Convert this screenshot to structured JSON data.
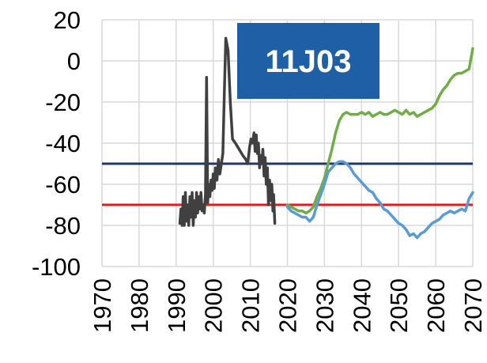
{
  "chart_data": {
    "type": "line",
    "title": "",
    "xlabel": "",
    "ylabel": "",
    "xlim": [
      1970,
      2070
    ],
    "ylim": [
      -100,
      20
    ],
    "x_ticks": [
      "1970",
      "1980",
      "1990",
      "2000",
      "2010",
      "2020",
      "2030",
      "2040",
      "2050",
      "2060",
      "2070"
    ],
    "y_ticks": [
      "20",
      "0",
      "-20",
      "-40",
      "-60",
      "-80",
      "-100"
    ],
    "grid": true,
    "legend": "none",
    "annotation": {
      "text": "11J03",
      "background": "#1f5fa6",
      "color": "#ffffff"
    },
    "reference_lines": [
      {
        "y": -50,
        "color": "#1f3864"
      },
      {
        "y": -70,
        "color": "#e8191c"
      }
    ],
    "series": [
      {
        "color": "#404040",
        "x": [
          1991.0,
          1991.3,
          1991.6,
          1991.9,
          1992.2,
          1992.5,
          1992.8,
          1993.1,
          1993.4,
          1993.7,
          1994.0,
          1994.3,
          1994.6,
          1994.9,
          1995.2,
          1995.5,
          1995.8,
          1996.1,
          1996.4,
          1996.7,
          1997.0,
          1997.3,
          1997.6,
          1997.9,
          1998.2,
          1998.5,
          1998.8,
          1999.1,
          1999.4,
          1999.7,
          2000.0,
          2000.3,
          2000.6,
          2001.0,
          2001.4,
          2001.8,
          2002.2,
          2002.6,
          2003.0,
          2003.4,
          2004.0,
          2004.6,
          2005.2,
          2006.0,
          2007.0,
          2008.0,
          2008.8,
          2009.3,
          2009.8,
          2010.2,
          2010.6,
          2011.0,
          2011.3,
          2011.6,
          2011.9,
          2012.2,
          2012.5,
          2012.8,
          2013.1,
          2013.4,
          2013.7,
          2014.0,
          2014.3,
          2014.6,
          2014.9,
          2015.2,
          2015.5,
          2015.8,
          2016.1,
          2016.3,
          2016.6
        ],
        "y": [
          -79,
          -72,
          -80,
          -66,
          -80,
          -64,
          -78,
          -70,
          -80,
          -66,
          -76,
          -64,
          -80,
          -68,
          -76,
          -64,
          -74,
          -66,
          -72,
          -64,
          -73,
          -70,
          -74,
          -65,
          -8,
          -69,
          -60,
          -66,
          -58,
          -63,
          -55,
          -62,
          -52,
          -58,
          -48,
          -55,
          -50,
          -45,
          -15,
          11,
          5,
          -20,
          -38,
          -40,
          -43,
          -46,
          -48,
          -50,
          -42,
          -38,
          -40,
          -35,
          -44,
          -36,
          -45,
          -40,
          -52,
          -46,
          -50,
          -43,
          -56,
          -47,
          -60,
          -52,
          -70,
          -58,
          -68,
          -60,
          -73,
          -65,
          -79
        ]
      },
      {
        "color": "#70ad47",
        "x": [
          2020.0,
          2021.0,
          2022.0,
          2023.0,
          2024.0,
          2025.0,
          2026.0,
          2027.0,
          2028.0,
          2029.0,
          2030.0,
          2031.0,
          2032.0,
          2033.0,
          2034.0,
          2035.0,
          2036.0,
          2037.0,
          2038.0,
          2039.0,
          2040.0,
          2041.0,
          2042.0,
          2043.0,
          2044.0,
          2045.0,
          2046.0,
          2047.0,
          2048.0,
          2049.0,
          2050.0,
          2051.0,
          2052.0,
          2053.0,
          2054.0,
          2055.0,
          2056.0,
          2057.0,
          2058.0,
          2059.0,
          2060.0,
          2061.0,
          2062.0,
          2063.0,
          2064.0,
          2065.0,
          2066.0,
          2067.0,
          2068.0,
          2069.0,
          2070.0
        ],
        "y": [
          -70,
          -71,
          -72,
          -73,
          -73,
          -74,
          -73,
          -71,
          -66,
          -62,
          -57,
          -50,
          -43,
          -35,
          -29,
          -26,
          -25,
          -26,
          -26,
          -26,
          -25,
          -26,
          -25,
          -27,
          -26,
          -25,
          -26,
          -26,
          -25,
          -24,
          -25,
          -26,
          -24,
          -26,
          -25,
          -27,
          -26,
          -25,
          -24,
          -23,
          -21,
          -17,
          -14,
          -12,
          -9,
          -7,
          -6,
          -6,
          -5,
          -4,
          6
        ]
      },
      {
        "color": "#5b9bd5",
        "x": [
          2020.0,
          2021.0,
          2022.0,
          2023.0,
          2024.0,
          2025.0,
          2026.0,
          2027.0,
          2028.0,
          2029.0,
          2030.0,
          2031.0,
          2032.0,
          2033.0,
          2034.0,
          2035.0,
          2036.0,
          2037.0,
          2038.0,
          2039.0,
          2040.0,
          2041.0,
          2042.0,
          2043.0,
          2044.0,
          2045.0,
          2046.0,
          2047.0,
          2048.0,
          2049.0,
          2050.0,
          2051.0,
          2052.0,
          2053.0,
          2054.0,
          2055.0,
          2056.0,
          2057.0,
          2058.0,
          2059.0,
          2060.0,
          2061.0,
          2062.0,
          2063.0,
          2064.0,
          2065.0,
          2066.0,
          2067.0,
          2068.0,
          2069.0,
          2070.0
        ],
        "y": [
          -71,
          -73,
          -74,
          -75,
          -76,
          -76,
          -78,
          -76,
          -70,
          -65,
          -60,
          -54,
          -52,
          -50,
          -49,
          -49,
          -50,
          -52,
          -55,
          -57,
          -59,
          -61,
          -63,
          -64,
          -67,
          -69,
          -72,
          -73,
          -75,
          -77,
          -79,
          -80,
          -82,
          -85,
          -84,
          -86,
          -84,
          -83,
          -81,
          -79,
          -78,
          -77,
          -75,
          -74,
          -73,
          -74,
          -73,
          -72,
          -73,
          -67,
          -64
        ]
      }
    ]
  }
}
